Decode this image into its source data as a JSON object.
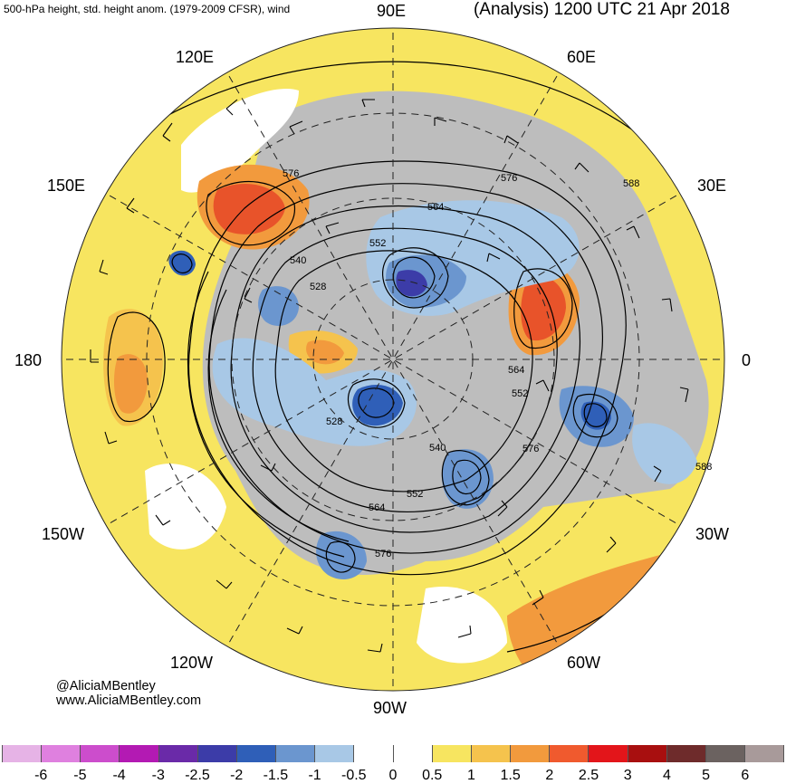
{
  "header": {
    "left_title": "500-hPa height, std. height anom. (1979-2009 CFSR), wind",
    "right_title": "(Analysis) 1200 UTC 21 Apr 2018"
  },
  "longitude_labels": {
    "lon_90e": "90E",
    "lon_120e": "120E",
    "lon_60e": "60E",
    "lon_150e": "150E",
    "lon_30e": "30E",
    "lon_180": "180",
    "lon_0": "0",
    "lon_150w": "150W",
    "lon_30w": "30W",
    "lon_120w": "120W",
    "lon_60w": "60W",
    "lon_90w": "90W"
  },
  "contour_labels": [
    "576",
    "576",
    "564",
    "552",
    "540",
    "528",
    "564",
    "552",
    "528",
    "540",
    "552",
    "564",
    "576",
    "576",
    "588",
    "588"
  ],
  "credit": {
    "handle": "@AliciaMBentley",
    "site": "www.AliciaMBentley.com"
  },
  "colorbar": {
    "colors": [
      "#e6b3e6",
      "#df80df",
      "#cc4dcc",
      "#b31ab3",
      "#6a2aa8",
      "#3c3ca8",
      "#2f5fb8",
      "#6b96cf",
      "#a8c8e6",
      "#ffffff",
      "#ffffff",
      "#f7e560",
      "#f5c34d",
      "#f29a3d",
      "#f05a2e",
      "#e3151a",
      "#a80f0f",
      "#6e2b2b",
      "#6b6260",
      "#a89a9a"
    ],
    "tick_labels": [
      "-6",
      "-5",
      "-4",
      "-3",
      "-2.5",
      "-2",
      "-1.5",
      "-1",
      "-0.5",
      "0",
      "0.5",
      "1",
      "1.5",
      "2",
      "2.5",
      "3",
      "4",
      "5",
      "6"
    ]
  },
  "anomaly_colors": {
    "strong_positive": "#e8532a",
    "positive": "#f29a3d",
    "weak_positive": "#f5c34d",
    "slight_positive": "#f7e560",
    "slight_negative": "#a8c8e6",
    "negative": "#6b96cf",
    "strong_negative": "#2f5fb8",
    "very_negative": "#3c3ca8",
    "land_mask": "#bdbdbd"
  }
}
